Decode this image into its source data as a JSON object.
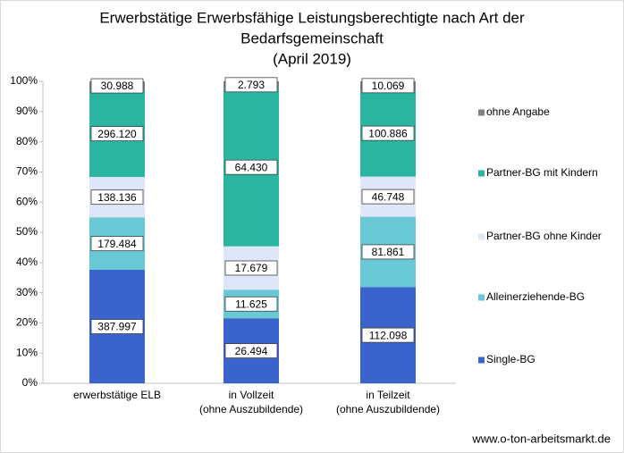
{
  "chart_data": {
    "type": "stacked_bar_100",
    "title": [
      "Erwerbstätige Erwerbsfähige Leistungsberechtigte nach Art der",
      "Bedarfsgemeinschaft",
      "(April 2019)"
    ],
    "categories": [
      [
        "erwerbstätige ELB"
      ],
      [
        "in Vollzeit",
        "(ohne Auszubildende)"
      ],
      [
        "in Teilzeit",
        "(ohne Auszubildende)"
      ]
    ],
    "series": [
      {
        "name": "Single-BG",
        "color": "#3a63cb",
        "values": [
          387997,
          26494,
          112098
        ],
        "value_labels": [
          "387.997",
          "26.494",
          "112.098"
        ]
      },
      {
        "name": "Alleinerziehende-BG",
        "color": "#68c8d6",
        "values": [
          179484,
          11625,
          81861
        ],
        "value_labels": [
          "179.484",
          "11.625",
          "81.861"
        ]
      },
      {
        "name": "Partner-BG ohne Kinder",
        "color": "#dde7f8",
        "values": [
          138136,
          17679,
          46748
        ],
        "value_labels": [
          "138.136",
          "17.679",
          "46.748"
        ]
      },
      {
        "name": "Partner-BG mit Kindern",
        "color": "#2bb5a0",
        "values": [
          296120,
          64430,
          100886
        ],
        "value_labels": [
          "296.120",
          "64.430",
          "100.886"
        ]
      },
      {
        "name": "ohne Angabe",
        "color": "#808080",
        "values": [
          30988,
          2793,
          10069
        ],
        "value_labels": [
          "30.988",
          "2.793",
          "10.069"
        ]
      }
    ],
    "ylim": [
      0,
      100
    ],
    "yticks": [
      {
        "value": 0,
        "label": "0%"
      },
      {
        "value": 10,
        "label": "10%"
      },
      {
        "value": 20,
        "label": "20%"
      },
      {
        "value": 30,
        "label": "30%"
      },
      {
        "value": 40,
        "label": "40%"
      },
      {
        "value": 50,
        "label": "50%"
      },
      {
        "value": 60,
        "label": "60%"
      },
      {
        "value": 70,
        "label": "70%"
      },
      {
        "value": 80,
        "label": "80%"
      },
      {
        "value": 90,
        "label": "90%"
      },
      {
        "value": 100,
        "label": "100%"
      }
    ],
    "legend": "right",
    "source": "www.o-ton-arbeitsmarkt.de"
  }
}
